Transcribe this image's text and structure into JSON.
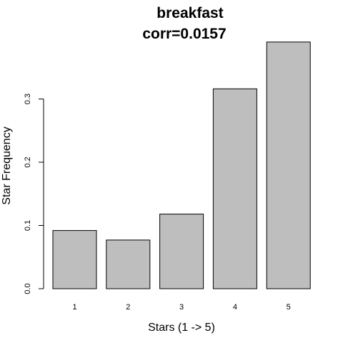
{
  "chart_data": {
    "type": "bar",
    "title": "breakfast",
    "subtitle": "corr=0.0157",
    "xlabel": "Stars (1 -> 5)",
    "ylabel": "Star Frequency",
    "categories": [
      "1",
      "2",
      "3",
      "4",
      "5"
    ],
    "values": [
      0.092,
      0.077,
      0.118,
      0.316,
      0.39
    ],
    "ylim": [
      0,
      0.4
    ],
    "yticks": [
      0.0,
      0.1,
      0.2,
      0.3
    ],
    "ytick_labels": [
      "0.0",
      "0.1",
      "0.2",
      "0.3"
    ],
    "bar_color": "#bebebe",
    "bar_border_color": "#000000",
    "grid": false,
    "legend": "none"
  }
}
